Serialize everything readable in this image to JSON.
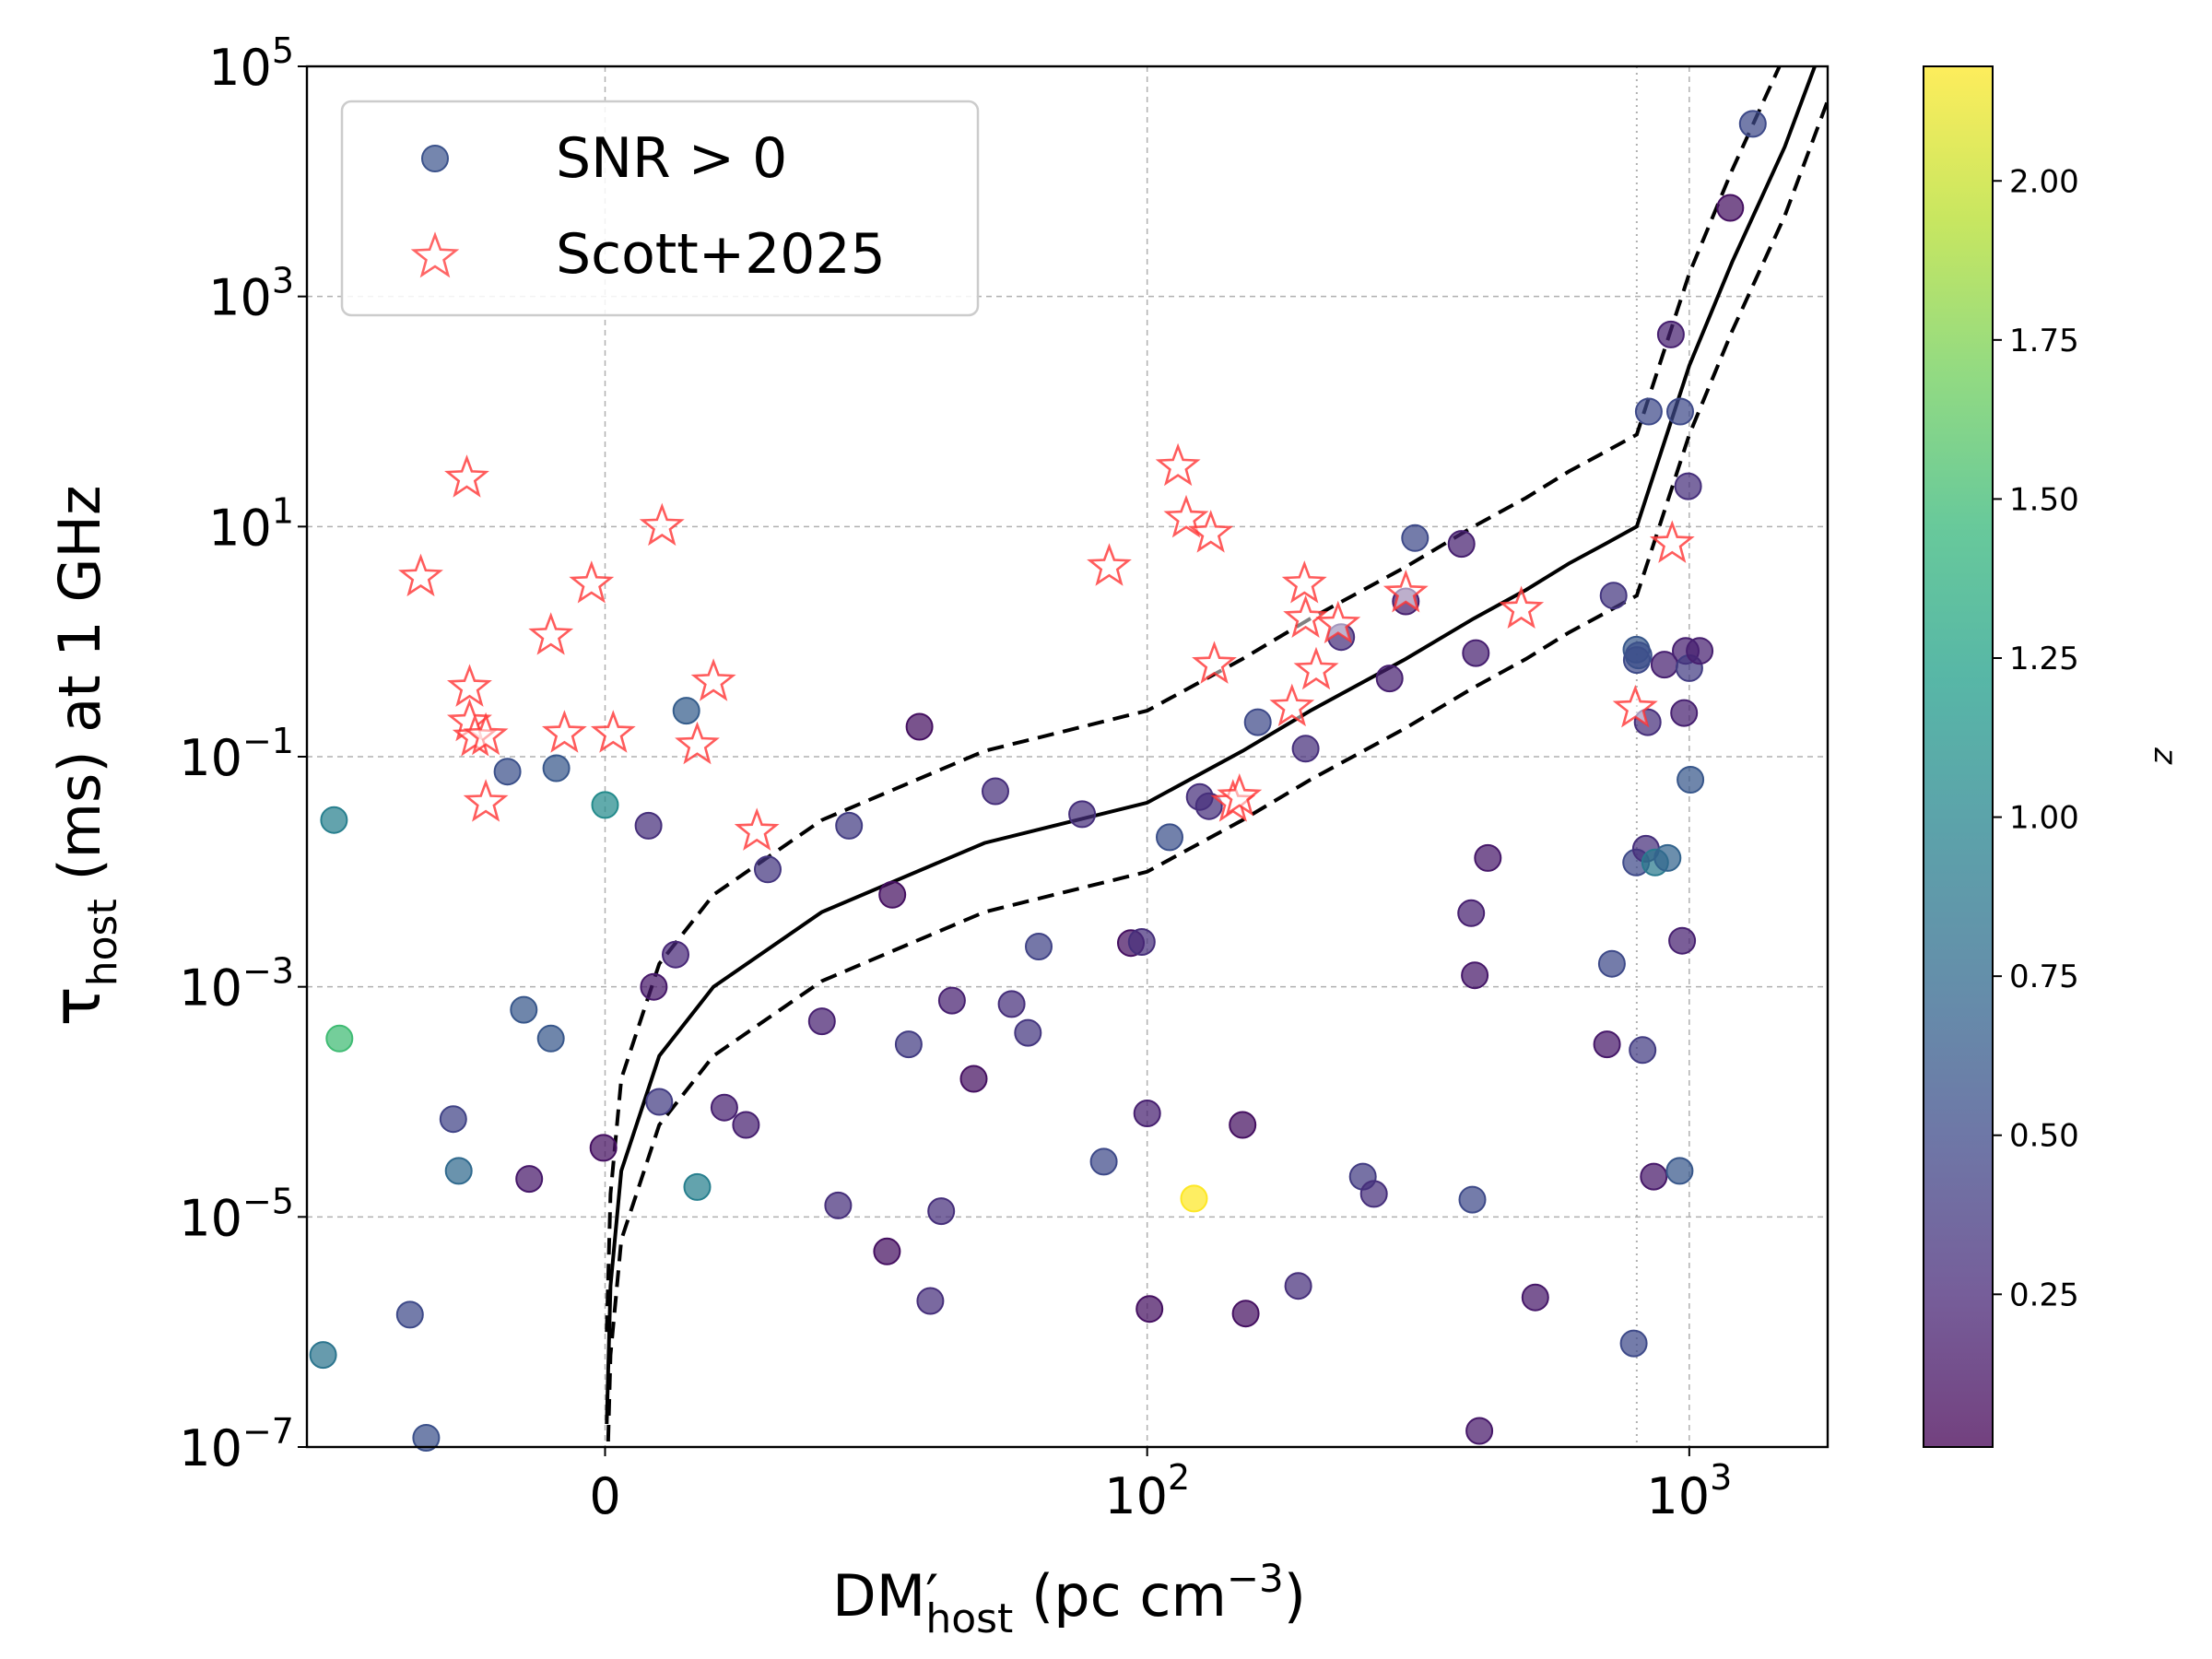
{
  "chart_data": {
    "type": "scatter",
    "title": "",
    "xlabel": "DM′_host (pc cm⁻³)",
    "ylabel": "τ_host (ms) at 1 GHz",
    "xlabel_parts": {
      "main": "DM",
      "prime": "′",
      "sub": "host",
      "unit_open": " (pc cm",
      "unit_exp": "−3",
      "unit_close": ")"
    },
    "ylabel_parts": {
      "main": "τ",
      "sub": "host",
      "rest": " (ms) at 1 GHz"
    },
    "x_scale": "symlog",
    "x_linthresh": 100,
    "xlim": [
      -55,
      1800
    ],
    "y_scale": "log",
    "ylim_exp": [
      -7,
      5
    ],
    "grid": true,
    "x_ticks": [
      {
        "value": 0,
        "label": "0"
      },
      {
        "value": 100,
        "label": "10",
        "exp": "2"
      },
      {
        "value": 1000,
        "label": "10",
        "exp": "3"
      }
    ],
    "y_ticks": [
      {
        "exp_value": 5,
        "label": "10",
        "exp": "5"
      },
      {
        "exp_value": 3,
        "label": "10",
        "exp": "3"
      },
      {
        "exp_value": 1,
        "label": "10",
        "exp": "1"
      },
      {
        "exp_value": -1,
        "label": "10",
        "exp": "−1"
      },
      {
        "exp_value": -3,
        "label": "10",
        "exp": "−3"
      },
      {
        "exp_value": -5,
        "label": "10",
        "exp": "−5"
      },
      {
        "exp_value": -7,
        "label": "10",
        "exp": "−7"
      }
    ],
    "legend": {
      "position": "upper-left",
      "entries": [
        {
          "label": "SNR > 0",
          "marker": "circle",
          "color": "#3b528b"
        },
        {
          "label": "Scott+2025",
          "marker": "star",
          "color": "#ff3333"
        }
      ]
    },
    "colorbar": {
      "label": "z",
      "range": [
        0.01,
        2.18
      ],
      "ticks": [
        {
          "value": 0.25,
          "label": "0.25"
        },
        {
          "value": 0.5,
          "label": "0.50"
        },
        {
          "value": 0.75,
          "label": "0.75"
        },
        {
          "value": 1.0,
          "label": "1.00"
        },
        {
          "value": 1.25,
          "label": "1.25"
        },
        {
          "value": 1.5,
          "label": "1.50"
        },
        {
          "value": 1.75,
          "label": "1.75"
        },
        {
          "value": 2.0,
          "label": "2.00"
        }
      ],
      "colormap": [
        "#440154",
        "#482878",
        "#3e4989",
        "#31688e",
        "#26828e",
        "#1f9e89",
        "#35b779",
        "#6ece58",
        "#b5de2b",
        "#fde725"
      ]
    },
    "model_curves": {
      "x": [
        0.3,
        1,
        3,
        10,
        20,
        40,
        70,
        100,
        150,
        200,
        300,
        400,
        500,
        600,
        700,
        800,
        1000,
        1200,
        1500,
        1800
      ],
      "median_log_tau": [
        -6.8,
        -5.6,
        -4.6,
        -3.6,
        -3.0,
        -2.35,
        -1.75,
        -1.4,
        -0.95,
        -0.6,
        -0.15,
        0.2,
        0.45,
        0.68,
        0.85,
        1.0,
        2.4,
        3.3,
        4.3,
        5.3
      ],
      "upper_log_tau": [
        -6.0,
        -4.8,
        -3.8,
        -2.8,
        -2.2,
        -1.55,
        -0.95,
        -0.6,
        -0.15,
        0.2,
        0.65,
        1.0,
        1.25,
        1.48,
        1.65,
        1.8,
        3.2,
        4.1,
        5.1,
        6.1
      ],
      "lower_log_tau": [
        -7.4,
        -6.2,
        -5.2,
        -4.2,
        -3.6,
        -2.95,
        -2.35,
        -2.0,
        -1.55,
        -1.2,
        -0.75,
        -0.4,
        -0.15,
        0.08,
        0.25,
        0.4,
        1.8,
        2.7,
        3.7,
        4.7
      ],
      "kink_x": 800
    },
    "series": [
      {
        "name": "SNR > 0",
        "marker": "circle",
        "points": [
          [
            -52,
            -6.2,
            0.85
          ],
          [
            -50,
            -1.55,
            0.95
          ],
          [
            -49,
            -3.45,
            1.5
          ],
          [
            -33,
            -6.92,
            0.55
          ],
          [
            -36,
            -5.85,
            0.5
          ],
          [
            -28,
            -4.15,
            0.45
          ],
          [
            -27,
            -4.6,
            0.75
          ],
          [
            -18,
            -1.13,
            0.55
          ],
          [
            -15,
            -3.2,
            0.6
          ],
          [
            -14,
            -4.67,
            0.15
          ],
          [
            -10,
            -3.45,
            0.6
          ],
          [
            -9,
            -1.1,
            0.6
          ],
          [
            -0.3,
            -4.4,
            0.1
          ],
          [
            0,
            -1.42,
            1.05
          ],
          [
            8,
            -1.6,
            0.3
          ],
          [
            9,
            -3.0,
            0.15
          ],
          [
            10,
            -4.0,
            0.4
          ],
          [
            13,
            -2.72,
            0.25
          ],
          [
            15,
            -0.6,
            0.65
          ],
          [
            17,
            -4.74,
            0.95
          ],
          [
            22,
            -4.05,
            0.2
          ],
          [
            26,
            -4.2,
            0.2
          ],
          [
            30,
            -1.98,
            0.35
          ],
          [
            40,
            -3.3,
            0.2
          ],
          [
            43,
            -4.9,
            0.3
          ],
          [
            45,
            -1.6,
            0.4
          ],
          [
            52,
            -5.3,
            0.1
          ],
          [
            53,
            -2.2,
            0.1
          ],
          [
            56,
            -3.5,
            0.4
          ],
          [
            58,
            -0.74,
            0.1
          ],
          [
            60,
            -5.73,
            0.3
          ],
          [
            62,
            -4.95,
            0.3
          ],
          [
            64,
            -3.12,
            0.2
          ],
          [
            68,
            -3.8,
            0.1
          ],
          [
            72,
            -1.3,
            0.3
          ],
          [
            75,
            -3.15,
            0.3
          ],
          [
            78,
            -3.4,
            0.35
          ],
          [
            80,
            -2.65,
            0.45
          ],
          [
            88,
            -1.5,
            0.3
          ],
          [
            92,
            -4.52,
            0.5
          ],
          [
            97,
            -2.62,
            0.1
          ],
          [
            99,
            -2.61,
            0.3
          ],
          [
            100,
            -4.1,
            0.2
          ],
          [
            101,
            -5.8,
            0.1
          ],
          [
            110,
            -1.7,
            0.55
          ],
          [
            122,
            -4.84,
            2.18
          ],
          [
            125,
            -1.35,
            0.3
          ],
          [
            130,
            -1.43,
            0.3
          ],
          [
            150,
            -4.2,
            0.1
          ],
          [
            152,
            -5.84,
            0.1
          ],
          [
            160,
            -0.7,
            0.5
          ],
          [
            190,
            -5.6,
            0.3
          ],
          [
            196,
            -0.93,
            0.3
          ],
          [
            228,
            0.04,
            0.3
          ],
          [
            250,
            -4.65,
            0.4
          ],
          [
            262,
            -4.8,
            0.3
          ],
          [
            280,
            -0.32,
            0.2
          ],
          [
            300,
            0.35,
            0.2
          ],
          [
            312,
            0.9,
            0.5
          ],
          [
            380,
            0.85,
            0.2
          ],
          [
            396,
            -2.36,
            0.2
          ],
          [
            398,
            -4.85,
            0.5
          ],
          [
            402,
            -2.9,
            0.15
          ],
          [
            404,
            -0.1,
            0.2
          ],
          [
            410,
            -6.86,
            0.15
          ],
          [
            425,
            -1.88,
            0.15
          ],
          [
            520,
            -5.7,
            0.15
          ],
          [
            705,
            -3.5,
            0.15
          ],
          [
            720,
            -2.8,
            0.5
          ],
          [
            725,
            0.4,
            0.35
          ],
          [
            790,
            -6.1,
            0.5
          ],
          [
            798,
            -1.92,
            0.5
          ],
          [
            799,
            -0.07,
            0.6
          ],
          [
            800,
            -0.16,
            0.5
          ],
          [
            806,
            -0.12,
            0.55
          ],
          [
            820,
            -3.55,
            0.4
          ],
          [
            832,
            -1.8,
            0.3
          ],
          [
            838,
            -0.7,
            0.3
          ],
          [
            842,
            2.0,
            0.5
          ],
          [
            860,
            -4.65,
            0.15
          ],
          [
            865,
            -1.92,
            0.9
          ],
          [
            900,
            -0.2,
            0.2
          ],
          [
            912,
            -1.88,
            0.7
          ],
          [
            925,
            2.67,
            0.2
          ],
          [
            960,
            -4.6,
            0.6
          ],
          [
            962,
            2.0,
            0.5
          ],
          [
            970,
            -2.6,
            0.2
          ],
          [
            978,
            -0.62,
            0.2
          ],
          [
            985,
            -0.08,
            0.2
          ],
          [
            995,
            1.35,
            0.3
          ],
          [
            1000,
            -0.23,
            0.4
          ],
          [
            1005,
            -1.2,
            0.6
          ],
          [
            1045,
            -0.08,
            0.2
          ],
          [
            1190,
            3.77,
            0.1
          ],
          [
            1310,
            4.5,
            0.5
          ]
        ]
      },
      {
        "name": "Scott+2025",
        "marker": "star",
        "points": [
          [
            -34,
            0.56
          ],
          [
            -25,
            -0.4
          ],
          [
            -25.5,
            1.42
          ],
          [
            -25,
            -0.7
          ],
          [
            -24,
            -0.83
          ],
          [
            -22,
            -0.82
          ],
          [
            -22,
            -1.4
          ],
          [
            -10,
            0.05
          ],
          [
            -7.5,
            -0.8
          ],
          [
            -2.5,
            0.5
          ],
          [
            1.5,
            -0.8
          ],
          [
            10.5,
            1.0
          ],
          [
            17,
            -0.9
          ],
          [
            20,
            -0.35
          ],
          [
            28,
            -1.65
          ],
          [
            93,
            0.65
          ],
          [
            114,
            1.52
          ],
          [
            118,
            1.07
          ],
          [
            131,
            0.94
          ],
          [
            133,
            -0.2
          ],
          [
            144,
            -1.4
          ],
          [
            148,
            -1.35
          ],
          [
            185,
            -0.57
          ],
          [
            195,
            0.5
          ],
          [
            196,
            0.2
          ],
          [
            205,
            -0.25
          ],
          [
            225,
            0.15
          ],
          [
            300,
            0.42
          ],
          [
            490,
            0.28
          ],
          [
            795,
            -0.58
          ],
          [
            930,
            0.85
          ]
        ]
      }
    ]
  }
}
